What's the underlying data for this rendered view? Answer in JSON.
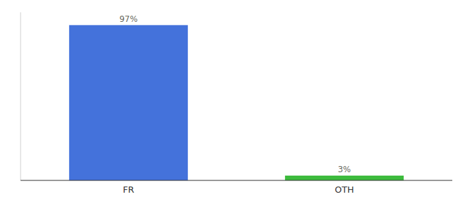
{
  "chart_data": {
    "type": "bar",
    "categories": [
      "FR",
      "OTH"
    ],
    "values": [
      97,
      3
    ],
    "value_labels": [
      "97%",
      "3%"
    ],
    "colors": [
      "#4472db",
      "#3dbb3d"
    ],
    "ylim": [
      0,
      105
    ],
    "data_labels": true,
    "tick_labels": "x",
    "grid": false
  }
}
